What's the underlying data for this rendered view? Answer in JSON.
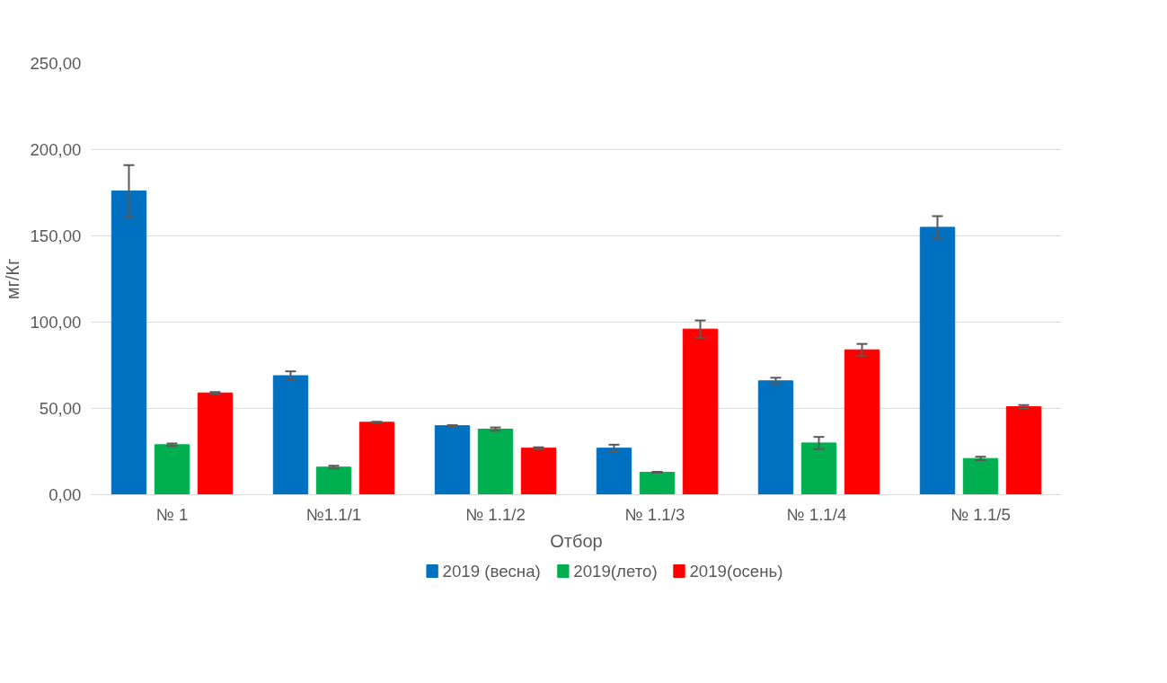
{
  "chart_data": {
    "type": "bar",
    "xlabel": "Отбор",
    "ylabel": "мг/Кг",
    "categories": [
      "№ 1",
      "№1.1/1",
      "№ 1.1/2",
      "№  1.1/3",
      "№  1.1/4",
      "№ 1.1/5"
    ],
    "series": [
      {
        "name": "2019 (весна)",
        "color": "#0070c0",
        "values": [
          176,
          69,
          40,
          27,
          66,
          155
        ],
        "errors": [
          15,
          2.5,
          0.3,
          2,
          1.8,
          6.5
        ]
      },
      {
        "name": "2019(лето)",
        "color": "#00b050",
        "values": [
          29,
          16,
          38,
          13,
          30,
          21
        ],
        "errors": [
          0.7,
          0.8,
          1,
          0.3,
          3.5,
          1
        ]
      },
      {
        "name": "2019(осень)",
        "color": "#ff0000",
        "values": [
          59,
          42,
          27,
          96,
          84,
          51
        ],
        "errors": [
          0.5,
          0.3,
          0.5,
          5,
          3.4,
          1
        ]
      }
    ],
    "ylim": [
      0,
      250
    ],
    "yticks": [
      {
        "value": 0,
        "label": "0,00"
      },
      {
        "value": 50,
        "label": "50,00"
      },
      {
        "value": 100,
        "label": "100,00"
      },
      {
        "value": 150,
        "label": "150,00"
      },
      {
        "value": 200,
        "label": "200,00"
      },
      {
        "value": 250,
        "label": "250,00"
      }
    ],
    "grid": "y",
    "legend": "bottom"
  }
}
